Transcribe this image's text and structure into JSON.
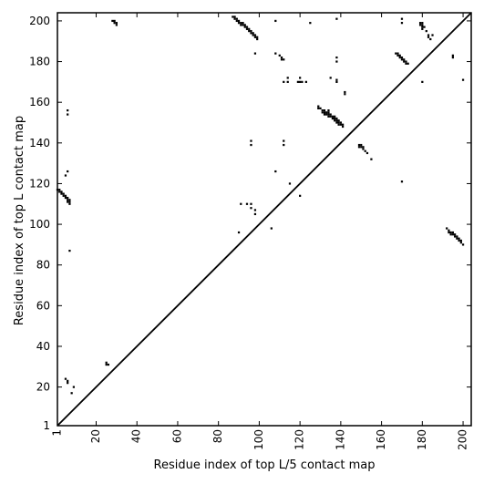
{
  "chart_data": {
    "type": "scatter",
    "title": "",
    "xlabel": "Residue index of top L/5 contact map",
    "ylabel": "Residue index of top L contact map",
    "xlim": [
      1,
      204
    ],
    "ylim": [
      1,
      204
    ],
    "xticks": [
      1,
      20,
      40,
      60,
      80,
      100,
      120,
      140,
      160,
      180,
      200
    ],
    "yticks": [
      1,
      20,
      40,
      60,
      80,
      100,
      120,
      140,
      160,
      180,
      200
    ],
    "xtick_rotation": -90,
    "grid": false,
    "diagonal_line": true,
    "marker_color": "#000000",
    "series": [
      {
        "points_upper": [
          [
            28,
            200
          ],
          [
            29,
            200
          ],
          [
            29,
            199
          ],
          [
            30,
            199
          ],
          [
            30,
            198
          ],
          [
            87,
            202
          ],
          [
            88,
            202
          ],
          [
            88,
            201
          ],
          [
            89,
            201
          ],
          [
            89,
            200
          ],
          [
            90,
            200
          ],
          [
            90,
            199
          ],
          [
            91,
            199
          ],
          [
            92,
            199
          ],
          [
            91,
            198
          ],
          [
            92,
            198
          ],
          [
            93,
            198
          ],
          [
            93,
            197
          ],
          [
            94,
            197
          ],
          [
            94,
            196
          ],
          [
            95,
            196
          ],
          [
            95,
            195
          ],
          [
            96,
            195
          ],
          [
            96,
            194
          ],
          [
            97,
            194
          ],
          [
            97,
            193
          ],
          [
            98,
            193
          ],
          [
            98,
            192
          ],
          [
            99,
            192
          ],
          [
            99,
            191
          ],
          [
            98,
            184
          ],
          [
            108,
            200
          ],
          [
            108,
            184
          ],
          [
            110,
            183
          ],
          [
            111,
            182
          ],
          [
            111,
            181
          ],
          [
            112,
            181
          ],
          [
            112,
            170
          ],
          [
            114,
            170
          ],
          [
            114,
            172
          ],
          [
            119,
            170
          ],
          [
            120,
            170
          ],
          [
            120,
            172
          ],
          [
            121,
            170
          ],
          [
            123,
            170
          ],
          [
            125,
            199
          ],
          [
            135,
            172
          ],
          [
            138,
            201
          ],
          [
            138,
            182
          ],
          [
            138,
            180
          ],
          [
            138,
            171
          ],
          [
            138,
            170
          ],
          [
            142,
            165
          ],
          [
            142,
            164
          ],
          [
            170,
            201
          ],
          [
            170,
            199
          ],
          [
            167,
            184
          ],
          [
            168,
            184
          ],
          [
            168,
            183
          ],
          [
            169,
            183
          ],
          [
            169,
            182
          ],
          [
            170,
            182
          ],
          [
            170,
            181
          ],
          [
            171,
            181
          ],
          [
            171,
            180
          ],
          [
            172,
            180
          ],
          [
            172,
            179
          ],
          [
            173,
            179
          ],
          [
            179,
            199
          ],
          [
            180,
            199
          ],
          [
            179,
            198
          ],
          [
            180,
            198
          ],
          [
            180,
            197
          ],
          [
            181,
            197
          ],
          [
            180,
            196
          ],
          [
            182,
            195
          ],
          [
            183,
            193
          ],
          [
            183,
            192
          ],
          [
            184,
            191
          ],
          [
            185,
            193
          ],
          [
            180,
            170
          ],
          [
            195,
            183
          ],
          [
            195,
            182
          ],
          [
            200,
            171
          ],
          [
            129,
            158
          ],
          [
            129,
            157
          ],
          [
            130,
            157
          ],
          [
            131,
            156
          ],
          [
            131,
            155
          ],
          [
            132,
            156
          ],
          [
            132,
            155
          ],
          [
            132,
            154
          ],
          [
            133,
            155
          ],
          [
            133,
            154
          ],
          [
            134,
            156
          ],
          [
            134,
            155
          ],
          [
            134,
            154
          ],
          [
            134,
            153
          ],
          [
            135,
            154
          ],
          [
            135,
            153
          ],
          [
            136,
            153
          ],
          [
            136,
            152
          ],
          [
            137,
            153
          ],
          [
            137,
            152
          ],
          [
            137,
            151
          ],
          [
            138,
            152
          ],
          [
            138,
            151
          ],
          [
            138,
            150
          ],
          [
            139,
            151
          ],
          [
            139,
            150
          ],
          [
            139,
            149
          ],
          [
            140,
            150
          ],
          [
            140,
            149
          ],
          [
            141,
            149
          ],
          [
            141,
            148
          ],
          [
            149,
            139
          ],
          [
            150,
            139
          ],
          [
            149,
            138
          ],
          [
            150,
            138
          ],
          [
            151,
            138
          ],
          [
            151,
            137
          ],
          [
            152,
            136
          ],
          [
            153,
            135
          ],
          [
            155,
            132
          ],
          [
            96,
            141
          ],
          [
            96,
            139
          ],
          [
            112,
            141
          ],
          [
            112,
            139
          ],
          [
            108,
            126
          ],
          [
            115,
            120
          ],
          [
            120,
            114
          ],
          [
            170,
            121
          ],
          [
            91,
            110
          ],
          [
            94,
            110
          ],
          [
            96,
            110
          ],
          [
            96,
            108
          ],
          [
            98,
            107
          ],
          [
            98,
            105
          ],
          [
            90,
            96
          ],
          [
            106,
            98
          ],
          [
            1,
            117
          ],
          [
            2,
            117
          ],
          [
            2,
            116
          ],
          [
            3,
            116
          ],
          [
            3,
            115
          ],
          [
            4,
            115
          ],
          [
            4,
            114
          ],
          [
            5,
            114
          ],
          [
            5,
            113
          ],
          [
            6,
            113
          ],
          [
            6,
            112
          ],
          [
            6,
            111
          ],
          [
            7,
            112
          ],
          [
            7,
            111
          ],
          [
            7,
            110
          ],
          [
            5,
            124
          ],
          [
            6,
            126
          ],
          [
            6,
            156
          ],
          [
            6,
            154
          ],
          [
            7,
            87
          ],
          [
            192,
            98
          ],
          [
            193,
            97
          ],
          [
            193,
            96
          ],
          [
            194,
            96
          ],
          [
            194,
            95
          ],
          [
            195,
            96
          ],
          [
            195,
            95
          ],
          [
            196,
            95
          ],
          [
            196,
            94
          ],
          [
            197,
            94
          ],
          [
            197,
            93
          ],
          [
            198,
            93
          ],
          [
            198,
            92
          ],
          [
            199,
            92
          ],
          [
            199,
            91
          ],
          [
            200,
            90
          ],
          [
            25,
            32
          ],
          [
            25,
            31
          ],
          [
            26,
            31
          ],
          [
            5,
            24
          ],
          [
            6,
            23
          ],
          [
            6,
            22
          ],
          [
            8,
            17
          ],
          [
            9,
            20
          ]
        ]
      }
    ]
  }
}
